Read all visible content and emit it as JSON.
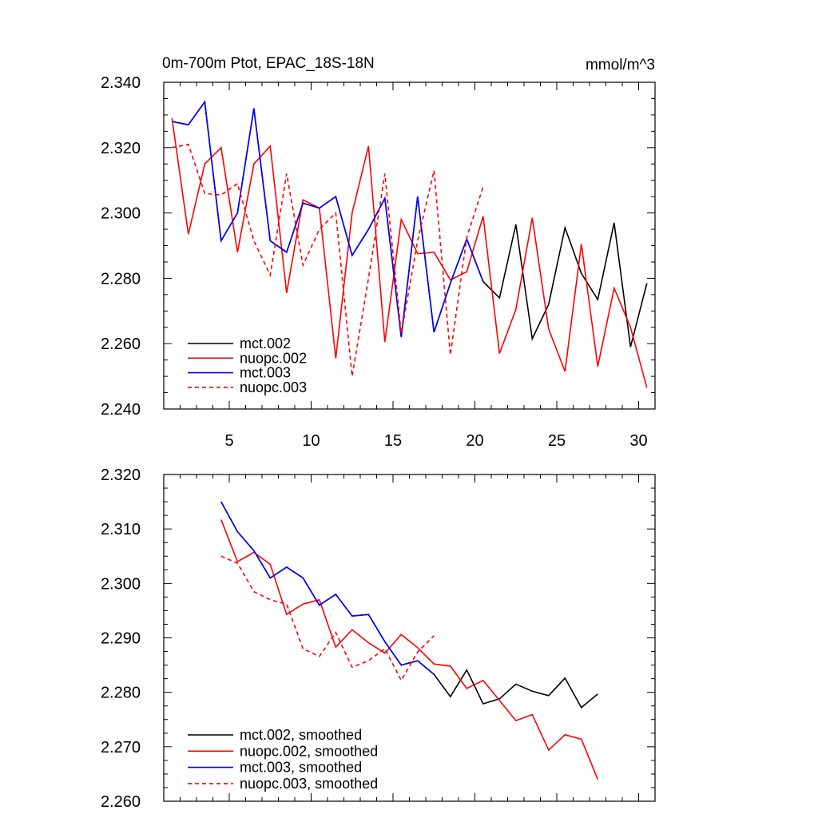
{
  "chart_data": [
    {
      "type": "line",
      "title_left": "0m-700m Ptot, EPAC_18S-18N",
      "title_right": "mmol/m^3",
      "xlim": [
        1,
        31
      ],
      "ylim": [
        2.24,
        2.34
      ],
      "xticks": [
        5,
        10,
        15,
        20,
        25,
        30
      ],
      "xtick_labels": [
        "5",
        "10",
        "15",
        "20",
        "25",
        "30"
      ],
      "yticks": [
        2.24,
        2.26,
        2.28,
        2.3,
        2.32,
        2.34
      ],
      "ytick_labels": [
        "2.240",
        "2.260",
        "2.280",
        "2.300",
        "2.320",
        "2.340"
      ],
      "legend_position": "bottom-left",
      "series": [
        {
          "name": "mct.002",
          "color": "#000000",
          "dash": "solid",
          "x": [
            1.5,
            2.5,
            3.5,
            4.5,
            5.5,
            6.5,
            7.5,
            8.5,
            9.5,
            10.5,
            11.5,
            12.5,
            13.5,
            14.5,
            15.5,
            16.5,
            17.5,
            18.5,
            19.5,
            20.5,
            21.5,
            22.5,
            23.5,
            24.5,
            25.5,
            26.5,
            27.5,
            28.5,
            29.5,
            30.5
          ],
          "values": [
            2.328,
            2.327,
            2.334,
            2.2915,
            2.3,
            2.332,
            2.2915,
            2.288,
            2.303,
            2.3015,
            2.305,
            2.287,
            2.295,
            2.3045,
            2.262,
            2.305,
            2.2635,
            2.2785,
            2.292,
            2.279,
            2.274,
            2.2965,
            2.2615,
            2.272,
            2.2955,
            2.2815,
            2.2735,
            2.297,
            2.259,
            2.2785
          ]
        },
        {
          "name": "nuopc.002",
          "color": "#ff0000",
          "dash": "solid",
          "x": [
            1.5,
            2.5,
            3.5,
            4.5,
            5.5,
            6.5,
            7.5,
            8.5,
            9.5,
            10.5,
            11.5,
            12.5,
            13.5,
            14.5,
            15.5,
            16.5,
            17.5,
            18.5,
            19.5,
            20.5,
            21.5,
            22.5,
            23.5,
            24.5,
            25.5,
            26.5,
            27.5,
            28.5,
            29.5,
            30.5
          ],
          "values": [
            2.329,
            2.2935,
            2.315,
            2.32,
            2.288,
            2.315,
            2.3205,
            2.2755,
            2.304,
            2.3015,
            2.2555,
            2.3,
            2.3205,
            2.2605,
            2.298,
            2.2875,
            2.288,
            2.2795,
            2.282,
            2.299,
            2.257,
            2.2705,
            2.2985,
            2.2645,
            2.2515,
            2.2905,
            2.253,
            2.277,
            2.265,
            2.2465
          ]
        },
        {
          "name": "mct.003",
          "color": "#0000ff",
          "dash": "solid",
          "x": [
            1.5,
            2.5,
            3.5,
            4.5,
            5.5,
            6.5,
            7.5,
            8.5,
            9.5,
            10.5,
            11.5,
            12.5,
            13.5,
            14.5,
            15.5,
            16.5,
            17.5,
            18.5,
            19.5,
            20.5
          ],
          "values": [
            2.328,
            2.327,
            2.334,
            2.2915,
            2.3,
            2.332,
            2.2915,
            2.288,
            2.303,
            2.3015,
            2.305,
            2.287,
            2.295,
            2.3045,
            2.262,
            2.305,
            2.2635,
            2.2785,
            2.292,
            2.279
          ]
        },
        {
          "name": "nuopc.003",
          "color": "#ff0000",
          "dash": "dashed",
          "x": [
            1.5,
            2.5,
            3.5,
            4.5,
            5.5,
            6.5,
            7.5,
            8.5,
            9.5,
            10.5,
            11.5,
            12.5,
            13.5,
            14.5,
            15.5,
            16.5,
            17.5,
            18.5,
            19.5,
            20.5
          ],
          "values": [
            2.32,
            2.321,
            2.306,
            2.3055,
            2.309,
            2.2915,
            2.281,
            2.312,
            2.284,
            2.295,
            2.3,
            2.25,
            2.28,
            2.312,
            2.263,
            2.2915,
            2.313,
            2.2565,
            2.2925,
            2.308
          ]
        }
      ]
    },
    {
      "type": "line",
      "xlim": [
        1,
        31
      ],
      "ylim": [
        2.26,
        2.32
      ],
      "xticks": [
        5,
        10,
        15,
        20,
        25,
        30
      ],
      "yticks": [
        2.26,
        2.27,
        2.28,
        2.29,
        2.3,
        2.31,
        2.32
      ],
      "ytick_labels": [
        "2.260",
        "2.270",
        "2.280",
        "2.290",
        "2.300",
        "2.310",
        "2.320"
      ],
      "legend_position": "bottom-left",
      "series": [
        {
          "name": "mct.002, smoothed",
          "color": "#000000",
          "dash": "solid",
          "x": [
            4.5,
            5.5,
            6.5,
            7.5,
            8.5,
            9.5,
            10.5,
            11.5,
            12.5,
            13.5,
            14.5,
            15.5,
            16.5,
            17.5,
            18.5,
            19.5,
            20.5,
            21.5,
            22.5,
            23.5,
            24.5,
            25.5,
            26.5,
            27.5
          ],
          "values": [
            2.315,
            2.3095,
            2.306,
            2.301,
            2.303,
            2.301,
            2.296,
            2.298,
            2.294,
            2.2943,
            2.2893,
            2.285,
            2.2858,
            2.2833,
            2.2792,
            2.2841,
            2.2779,
            2.2788,
            2.2815,
            2.2802,
            2.2794,
            2.2826,
            2.2772,
            2.2797
          ]
        },
        {
          "name": "nuopc.002, smoothed",
          "color": "#ff0000",
          "dash": "solid",
          "x": [
            4.5,
            5.5,
            6.5,
            7.5,
            8.5,
            9.5,
            10.5,
            11.5,
            12.5,
            13.5,
            14.5,
            15.5,
            16.5,
            17.5,
            18.5,
            19.5,
            20.5,
            21.5,
            22.5,
            23.5,
            24.5,
            25.5,
            26.5,
            27.5
          ],
          "values": [
            2.3117,
            2.304,
            2.3057,
            2.3035,
            2.2943,
            2.2962,
            2.297,
            2.2883,
            2.2915,
            2.2891,
            2.2872,
            2.2906,
            2.2882,
            2.2852,
            2.2848,
            2.2807,
            2.2822,
            2.2785,
            2.2748,
            2.2759,
            2.2694,
            2.2722,
            2.2714,
            2.264
          ]
        },
        {
          "name": "mct.003, smoothed",
          "color": "#0000ff",
          "dash": "solid",
          "x": [
            4.5,
            5.5,
            6.5,
            7.5,
            8.5,
            9.5,
            10.5,
            11.5,
            12.5,
            13.5,
            14.5,
            15.5,
            16.5,
            17.5
          ],
          "values": [
            2.315,
            2.3095,
            2.306,
            2.301,
            2.303,
            2.301,
            2.296,
            2.298,
            2.294,
            2.2943,
            2.2893,
            2.285,
            2.2858,
            2.2833
          ]
        },
        {
          "name": "nuopc.003, smoothed",
          "color": "#ff0000",
          "dash": "dashed",
          "x": [
            4.5,
            5.5,
            6.5,
            7.5,
            8.5,
            9.5,
            10.5,
            11.5,
            12.5,
            13.5,
            14.5,
            15.5,
            16.5,
            17.5
          ],
          "values": [
            2.305,
            2.3037,
            2.2985,
            2.297,
            2.2962,
            2.288,
            2.2866,
            2.291,
            2.2846,
            2.2858,
            2.288,
            2.2822,
            2.2874,
            2.2904
          ]
        }
      ]
    }
  ]
}
